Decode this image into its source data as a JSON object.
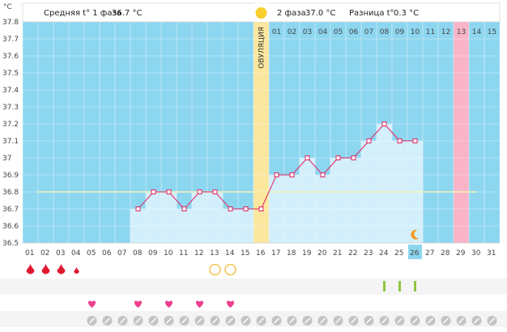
{
  "chart_data": {
    "type": "line",
    "unit_label": "°C",
    "header": {
      "phase1_label": "Средняя t° 1 фаза",
      "phase1_value": "36.7 °C",
      "phase2_label": "2 фаза",
      "phase2_value": "37.0 °C",
      "diff_label": "Разница t°",
      "diff_value": "0.3 °C"
    },
    "ovulation_label": "ОВУЛЯЦИЯ",
    "ovulation_day": 16,
    "ylim": [
      36.5,
      37.8
    ],
    "yticks": [
      "36.5",
      "36.6",
      "36.7",
      "36.8",
      "36.9",
      "37",
      "37.1",
      "37.2",
      "37.3",
      "37.4",
      "37.5",
      "37.6",
      "37.7",
      "37.8"
    ],
    "coverline": 36.8,
    "x": [
      "01",
      "02",
      "03",
      "04",
      "05",
      "06",
      "07",
      "08",
      "09",
      "10",
      "11",
      "12",
      "13",
      "14",
      "15",
      "16",
      "17",
      "18",
      "19",
      "20",
      "21",
      "22",
      "23",
      "24",
      "25",
      "26",
      "27",
      "28",
      "29",
      "30",
      "31"
    ],
    "highlight_day": "26",
    "pink_day": 29,
    "post_ovulation_days": [
      "01",
      "02",
      "03",
      "04",
      "05",
      "06",
      "07",
      "08",
      "09",
      "10",
      "11",
      "12",
      "13",
      "14",
      "15"
    ],
    "series": [
      {
        "points": [
          [
            8,
            36.7
          ],
          [
            9,
            36.8
          ],
          [
            10,
            36.8
          ],
          [
            11,
            36.7
          ],
          [
            12,
            36.8
          ],
          [
            13,
            36.8
          ],
          [
            14,
            36.7
          ],
          [
            15,
            36.7
          ],
          [
            16,
            36.7
          ],
          [
            17,
            36.9
          ],
          [
            18,
            36.9
          ],
          [
            19,
            37.0
          ],
          [
            20,
            36.9
          ],
          [
            21,
            37.0
          ],
          [
            22,
            37.0
          ],
          [
            23,
            37.1
          ],
          [
            24,
            37.2
          ],
          [
            25,
            37.1
          ],
          [
            26,
            37.1
          ]
        ]
      }
    ],
    "markers": {
      "bleeding_days": [
        1,
        2,
        3,
        4
      ],
      "bleeding_sizes": [
        1,
        1,
        1,
        0.65
      ],
      "circle_days": [
        13,
        14
      ],
      "test_days": [
        24,
        25,
        26
      ],
      "heart_days": [
        5,
        8,
        10,
        12,
        14
      ],
      "pill_days": [
        5,
        6,
        7,
        8,
        9,
        10,
        11,
        12,
        13,
        14,
        15,
        16,
        17,
        18,
        19,
        20,
        21,
        22,
        23,
        24,
        25,
        26,
        27,
        28,
        29,
        30,
        31
      ],
      "moon_day": 26
    },
    "colors": {
      "background": "#8dd6f0",
      "bar_fill": "#d3effb",
      "line": "#e0235f",
      "ovulation_band": "#fbe79e",
      "pink_band": "#f9b4c8",
      "coverline": "#f6f3b6",
      "highlight_day_bg": "#8dd6f0",
      "drop": "#e0182f",
      "circle": "#f2b933",
      "test_bar": "#8ec63f",
      "heart": "#ef3f8d",
      "pill": "#c4c4c4",
      "moon": "#f29a1d",
      "sun": "#f8cf2c"
    }
  }
}
